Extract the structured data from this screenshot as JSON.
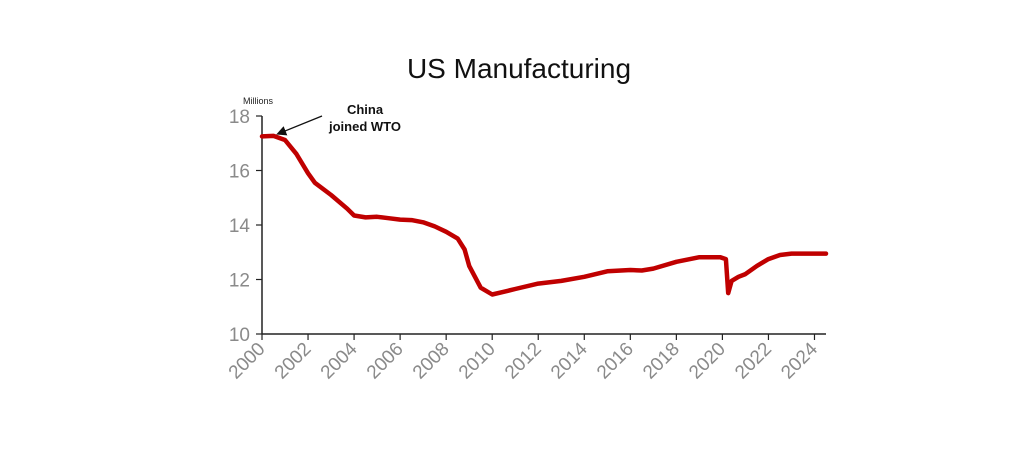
{
  "chart_data": {
    "type": "line",
    "title": "US Manufacturing",
    "ylabel": "Millions",
    "xlabel": "",
    "xlim": [
      2000,
      2024.5
    ],
    "ylim": [
      10,
      18
    ],
    "yticks": [
      10,
      12,
      14,
      16,
      18
    ],
    "xticks": [
      2000,
      2002,
      2004,
      2006,
      2008,
      2010,
      2012,
      2014,
      2016,
      2018,
      2020,
      2022,
      2024
    ],
    "grid": false,
    "series": [
      {
        "color": "#c00000",
        "points": [
          [
            2000.0,
            17.25
          ],
          [
            2000.5,
            17.27
          ],
          [
            2001.0,
            17.12
          ],
          [
            2001.5,
            16.6
          ],
          [
            2002.0,
            15.9
          ],
          [
            2002.3,
            15.55
          ],
          [
            2003.0,
            15.1
          ],
          [
            2003.7,
            14.6
          ],
          [
            2004.0,
            14.35
          ],
          [
            2004.5,
            14.28
          ],
          [
            2005.0,
            14.3
          ],
          [
            2005.5,
            14.25
          ],
          [
            2006.0,
            14.2
          ],
          [
            2006.5,
            14.18
          ],
          [
            2007.0,
            14.1
          ],
          [
            2007.5,
            13.95
          ],
          [
            2008.0,
            13.75
          ],
          [
            2008.5,
            13.5
          ],
          [
            2008.8,
            13.1
          ],
          [
            2009.0,
            12.5
          ],
          [
            2009.5,
            11.7
          ],
          [
            2010.0,
            11.45
          ],
          [
            2010.5,
            11.55
          ],
          [
            2011.0,
            11.65
          ],
          [
            2012.0,
            11.85
          ],
          [
            2013.0,
            11.95
          ],
          [
            2014.0,
            12.1
          ],
          [
            2015.0,
            12.3
          ],
          [
            2016.0,
            12.35
          ],
          [
            2016.5,
            12.33
          ],
          [
            2017.0,
            12.4
          ],
          [
            2018.0,
            12.65
          ],
          [
            2019.0,
            12.82
          ],
          [
            2019.9,
            12.82
          ],
          [
            2020.15,
            12.75
          ],
          [
            2020.25,
            11.5
          ],
          [
            2020.4,
            11.95
          ],
          [
            2020.7,
            12.1
          ],
          [
            2021.0,
            12.2
          ],
          [
            2021.5,
            12.5
          ],
          [
            2022.0,
            12.75
          ],
          [
            2022.5,
            12.9
          ],
          [
            2023.0,
            12.95
          ],
          [
            2024.0,
            12.95
          ],
          [
            2024.5,
            12.95
          ]
        ]
      }
    ],
    "annotations": [
      {
        "text_lines": [
          "China",
          "joined WTO"
        ],
        "arrow_to": [
          2000.7,
          17.2
        ]
      }
    ]
  }
}
